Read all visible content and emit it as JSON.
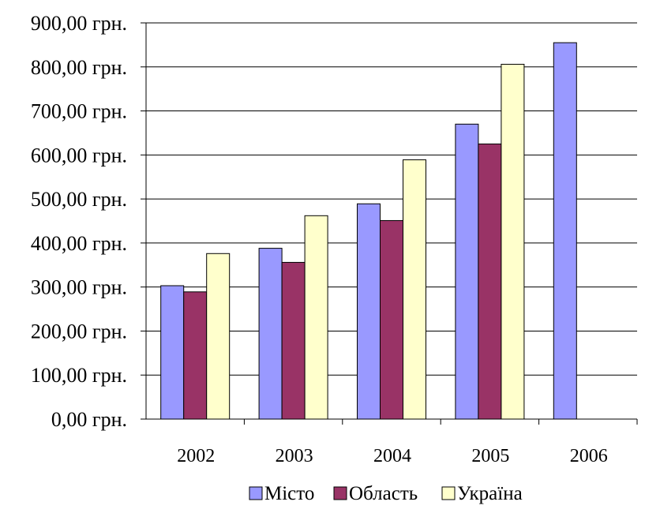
{
  "chart_data": {
    "type": "bar",
    "categories": [
      "2002",
      "2003",
      "2004",
      "2005",
      "2006"
    ],
    "series": [
      {
        "name": "Місто",
        "color": "#9999ff",
        "values": [
          303,
          388,
          489,
          670,
          855
        ]
      },
      {
        "name": "Область",
        "color": "#993366",
        "values": [
          289,
          356,
          451,
          625,
          null
        ]
      },
      {
        "name": "Україна",
        "color": "#ffffcc",
        "values": [
          376,
          462,
          589,
          806,
          null
        ]
      }
    ],
    "ylim": [
      0,
      900
    ],
    "y_ticks": [
      "0,00 грн.",
      "100,00 грн.",
      "200,00 грн.",
      "300,00 грн.",
      "400,00 грн.",
      "500,00 грн.",
      "600,00 грн.",
      "700,00 грн.",
      "800,00 грн.",
      "900,00 грн."
    ],
    "grid": "horizontal",
    "legend": "bottom",
    "title": "",
    "xlabel": "",
    "ylabel": ""
  }
}
